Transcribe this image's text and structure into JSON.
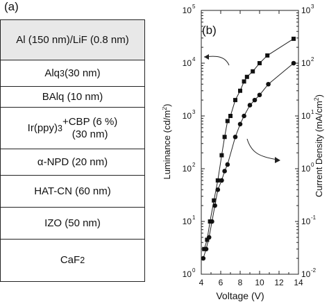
{
  "panel_a": {
    "label": "(a)",
    "layers": [
      {
        "text": "Al (150 nm)/LiF (0.8 nm)",
        "fill": "#e8e8e8"
      },
      {
        "text": "Alq<sub>3</sub> (30 nm)",
        "fill": "#ffffff"
      },
      {
        "text": "BAlq (10 nm)",
        "fill": "#ffffff"
      },
      {
        "text": "Ir(ppy)<sub>3</sub>+CBP (6 %)<br>(30 nm)",
        "fill": "#ffffff"
      },
      {
        "text": "α-NPD (20 nm)",
        "fill": "#ffffff"
      },
      {
        "text": "HAT-CN (60 nm)",
        "fill": "#ffffff"
      },
      {
        "text": "IZO (50 nm)",
        "fill": "#ffffff"
      },
      {
        "text": "CaF<sub>2</sub>",
        "fill": "#ffffff"
      }
    ]
  },
  "chart_data": {
    "type": "line",
    "panel_label": "(b)",
    "xlabel": "Voltage (V)",
    "ylabel_left": "Luminance (cd/m<tspan baseline-shift='super' font-size='9'>2</tspan>)",
    "ylabel_right": "Current Density (mA/cm<tspan baseline-shift='super' font-size='9'>2</tspan>)",
    "xlim": [
      4,
      14
    ],
    "x_ticks": [
      "4",
      "6",
      "8",
      "10",
      "12",
      "14"
    ],
    "ylim_left": [
      1,
      100000
    ],
    "ylim_right": [
      0.01,
      1000
    ],
    "y_left_ticks": [
      {
        "b": "10",
        "e": "0"
      },
      {
        "b": "10",
        "e": "1"
      },
      {
        "b": "10",
        "e": "2"
      },
      {
        "b": "10",
        "e": "3"
      },
      {
        "b": "10",
        "e": "4"
      },
      {
        "b": "10",
        "e": "5"
      }
    ],
    "y_right_ticks": [
      {
        "b": "10",
        "e": "-2"
      },
      {
        "b": "10",
        "e": "-1"
      },
      {
        "b": "10",
        "e": "0"
      },
      {
        "b": "10",
        "e": "1"
      },
      {
        "b": "10",
        "e": "2"
      },
      {
        "b": "10",
        "e": "3"
      }
    ],
    "yscale": "log",
    "series": [
      {
        "axis": "left",
        "marker": "square",
        "x": [
          4.3,
          4.6,
          4.9,
          5.3,
          5.7,
          6.1,
          6.4,
          6.7,
          7.0,
          7.5,
          8.0,
          8.4,
          8.7,
          9.3,
          10.0,
          10.8,
          13.5
        ],
        "y": [
          3,
          4.5,
          10,
          25,
          60,
          180,
          400,
          800,
          1000,
          2000,
          3000,
          4500,
          5500,
          7000,
          10000,
          14000,
          29000
        ]
      },
      {
        "axis": "right",
        "marker": "circle",
        "x": [
          4.2,
          4.5,
          4.8,
          5.1,
          5.4,
          5.7,
          6.1,
          6.4,
          6.7,
          7.5,
          8.0,
          8.4,
          9.0,
          9.5,
          10.0,
          10.9,
          13.5
        ],
        "y": [
          0.02,
          0.03,
          0.05,
          0.1,
          0.2,
          0.4,
          0.6,
          0.9,
          1.2,
          4,
          7,
          10,
          16,
          20,
          25,
          40,
          100
        ]
      }
    ],
    "annotations": [
      {
        "type": "arrow",
        "from": "left-series",
        "to": "left-axis"
      },
      {
        "type": "arrow",
        "from": "right-series",
        "to": "right-axis"
      }
    ],
    "grid": false,
    "colors": {
      "line": "#222222",
      "marker": "#111111"
    }
  }
}
